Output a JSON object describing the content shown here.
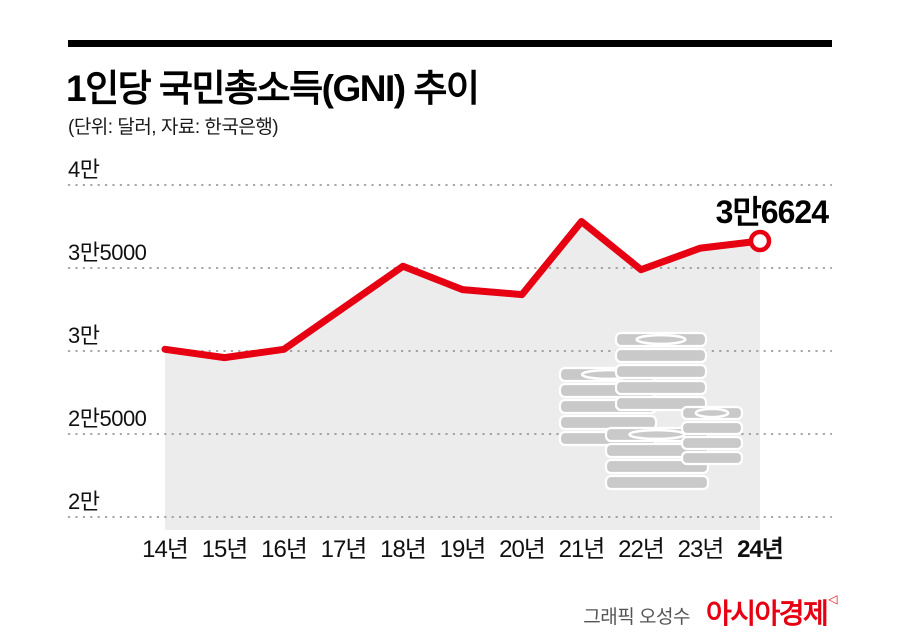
{
  "header": {
    "title": "1인당 국민총소득(GNI) 추이",
    "subtitle": "(단위: 달러, 자료: 한국은행)"
  },
  "footer": {
    "credit": "그래픽 오성수",
    "logo": "아시아경제",
    "logo_mark": "◁"
  },
  "colors": {
    "accent_red": "#e60012",
    "grid_gray": "#8c8c8c",
    "text_black": "#111111",
    "credit_gray": "#555555",
    "area_gray": "#ececec",
    "icon_gray": "#c9c9c9"
  },
  "chart_data": {
    "type": "line",
    "title": "1인당 국민총소득(GNI) 추이",
    "unit_note": "(단위: 달러, 자료: 한국은행)",
    "categories": [
      "14년",
      "15년",
      "16년",
      "17년",
      "18년",
      "19년",
      "20년",
      "21년",
      "22년",
      "23년",
      "24년"
    ],
    "values": [
      30100,
      29600,
      30100,
      32600,
      35100,
      33700,
      33400,
      37800,
      34900,
      36200,
      36624
    ],
    "end_label": "3만6624",
    "end_value": 36624,
    "ylim": [
      20000,
      40000
    ],
    "ytick_values": [
      40000,
      35000,
      30000,
      25000,
      20000
    ],
    "ytick_labels": [
      "4만",
      "3만5000",
      "3만",
      "2만5000",
      "2만"
    ],
    "grid": "horizontal-dotted",
    "legend": "none",
    "line_color": "#e60012",
    "area_fill": "#ececec",
    "marker": "open-circle-on-last-point",
    "emphasized_category": "24년",
    "icon": "money-stacks",
    "icon_color": "#c9c9c9"
  }
}
